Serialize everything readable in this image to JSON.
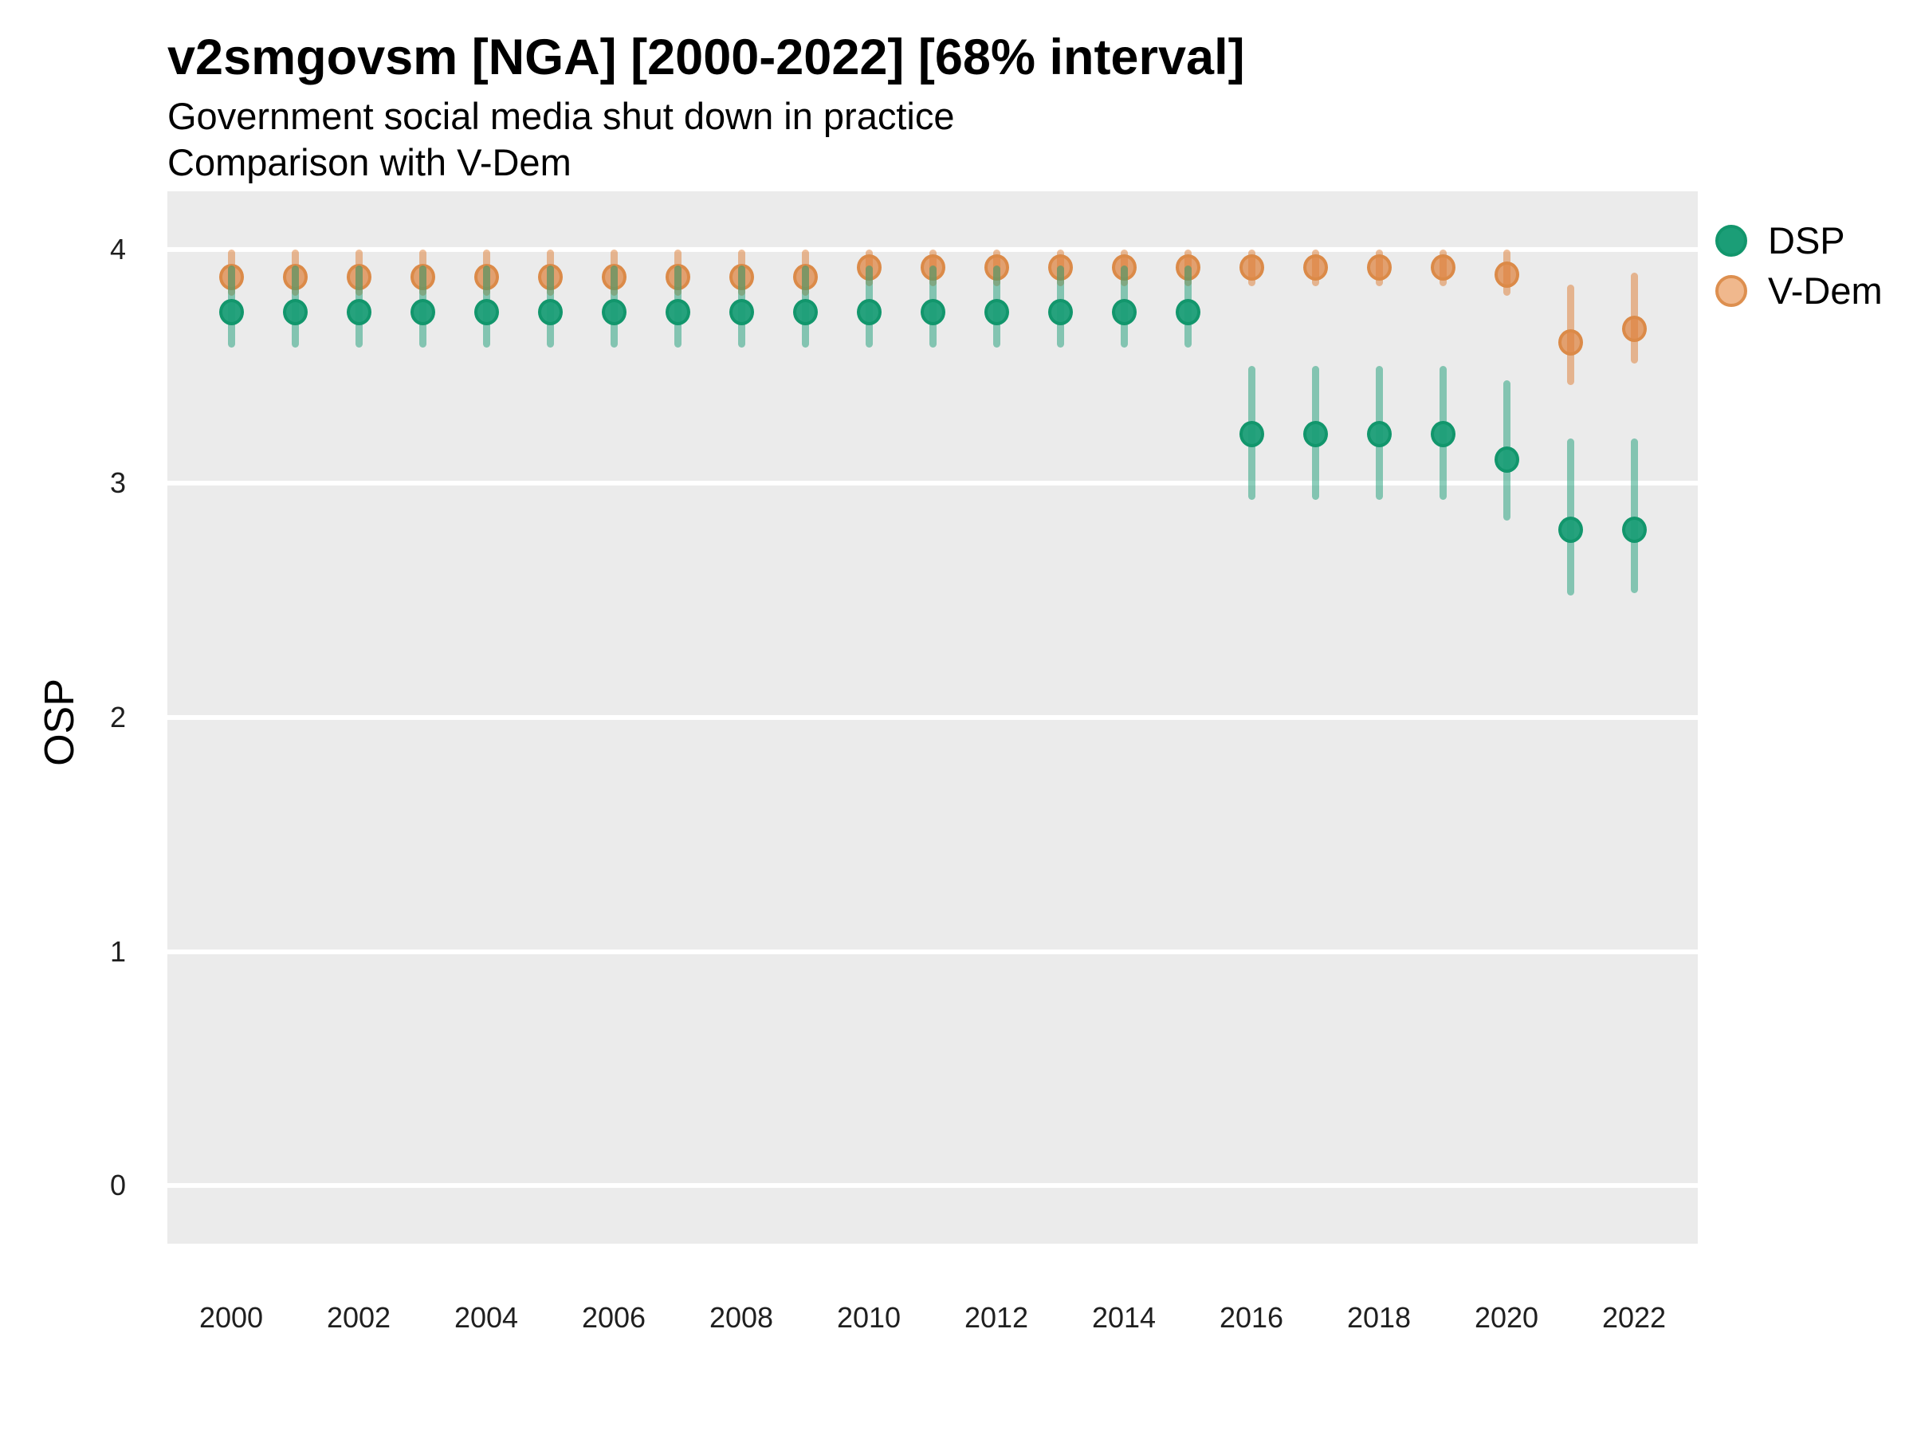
{
  "header": {
    "title": "v2smgovsm [NGA] [2000-2022] [68% interval]",
    "subtitle_line1": "Government social media shut down in practice",
    "subtitle_line2": "Comparison with V-Dem"
  },
  "colors": {
    "panel_background": "#ebebeb",
    "gridline": "#ffffff",
    "dsp_green": "#1b9e77",
    "vdem_orange": "#de803a"
  },
  "chart_data": {
    "type": "scatter",
    "title": "v2smgovsm [NGA] [2000-2022] [68% interval]",
    "subtitle": "Government social media shut down in practice / Comparison with V-Dem",
    "xlabel": "",
    "ylabel": "OSP",
    "interval_note": "68% interval",
    "country": "NGA",
    "grid": "major-horizontal-white-on-grey",
    "legend_position": "right",
    "ylim": [
      -0.25,
      4.25
    ],
    "y_ticks": [
      4,
      3,
      2,
      1,
      0
    ],
    "x_tick_labels": [
      "2000",
      "2002",
      "2004",
      "2006",
      "2008",
      "2010",
      "2012",
      "2014",
      "2016",
      "2018",
      "2020",
      "2022"
    ],
    "x": [
      2000,
      2001,
      2002,
      2003,
      2004,
      2005,
      2006,
      2007,
      2008,
      2009,
      2010,
      2011,
      2012,
      2013,
      2014,
      2015,
      2016,
      2017,
      2018,
      2019,
      2020,
      2021,
      2022
    ],
    "series": [
      {
        "name": "DSP",
        "point_color": "rgba(27, 158, 119, 0.95)",
        "ring_color": "#12966c",
        "bar_color": "rgba(27, 158, 119, 0.5)",
        "legend_fill": "#1b9e77",
        "legend_ring": "#12966c",
        "values": [
          3.73,
          3.73,
          3.73,
          3.73,
          3.73,
          3.73,
          3.73,
          3.73,
          3.73,
          3.73,
          3.73,
          3.73,
          3.73,
          3.73,
          3.73,
          3.73,
          3.21,
          3.21,
          3.21,
          3.21,
          3.1,
          2.8,
          2.8
        ],
        "lo": [
          3.58,
          3.58,
          3.58,
          3.58,
          3.58,
          3.58,
          3.58,
          3.58,
          3.58,
          3.58,
          3.58,
          3.58,
          3.58,
          3.58,
          3.58,
          3.58,
          2.93,
          2.93,
          2.93,
          2.93,
          2.84,
          2.52,
          2.53
        ],
        "hi": [
          3.93,
          3.93,
          3.93,
          3.93,
          3.93,
          3.93,
          3.93,
          3.93,
          3.93,
          3.93,
          3.93,
          3.93,
          3.93,
          3.93,
          3.93,
          3.93,
          3.5,
          3.5,
          3.5,
          3.5,
          3.44,
          3.19,
          3.19
        ]
      },
      {
        "name": "V-Dem",
        "point_color": "rgba(222, 128, 58, 0.70)",
        "ring_color": "#db8a48",
        "bar_color": "rgba(222, 128, 58, 0.52)",
        "legend_fill": "#f0b88d",
        "legend_ring": "#dd8f4f",
        "values": [
          3.88,
          3.88,
          3.88,
          3.88,
          3.88,
          3.88,
          3.88,
          3.88,
          3.88,
          3.88,
          3.92,
          3.92,
          3.92,
          3.92,
          3.92,
          3.92,
          3.92,
          3.92,
          3.92,
          3.92,
          3.89,
          3.6,
          3.66
        ],
        "lo": [
          3.8,
          3.8,
          3.8,
          3.8,
          3.8,
          3.8,
          3.8,
          3.8,
          3.8,
          3.8,
          3.84,
          3.84,
          3.84,
          3.84,
          3.84,
          3.84,
          3.84,
          3.84,
          3.84,
          3.84,
          3.8,
          3.42,
          3.51
        ],
        "hi": [
          4.0,
          4.0,
          4.0,
          4.0,
          4.0,
          4.0,
          4.0,
          4.0,
          4.0,
          4.0,
          4.0,
          4.0,
          4.0,
          4.0,
          4.0,
          4.0,
          4.0,
          4.0,
          4.0,
          4.0,
          4.0,
          3.85,
          3.9
        ]
      }
    ]
  }
}
